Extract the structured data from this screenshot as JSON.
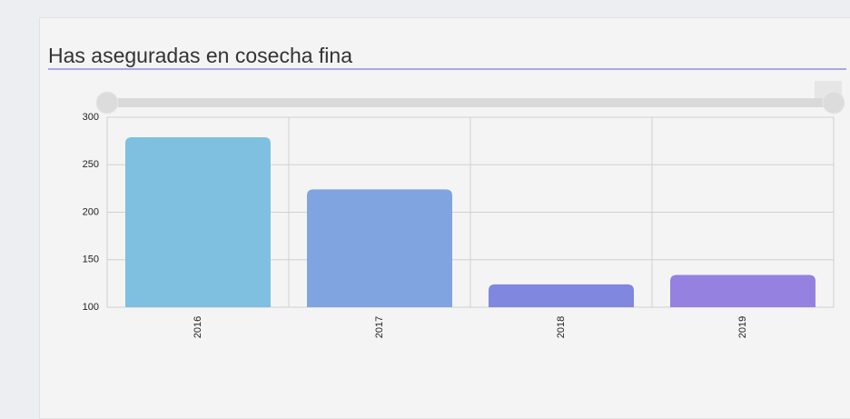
{
  "chart_data": {
    "type": "bar",
    "title": "Has aseguradas en cosecha fina",
    "categories": [
      "2016",
      "2017",
      "2018",
      "2019"
    ],
    "values": [
      279,
      224,
      124,
      134
    ],
    "colors": [
      "#7fbfe0",
      "#7fa4e0",
      "#7f87de",
      "#9581e0"
    ],
    "ylim": [
      100,
      300
    ],
    "yticks": [
      100,
      150,
      200,
      250,
      300
    ],
    "grid": true
  }
}
